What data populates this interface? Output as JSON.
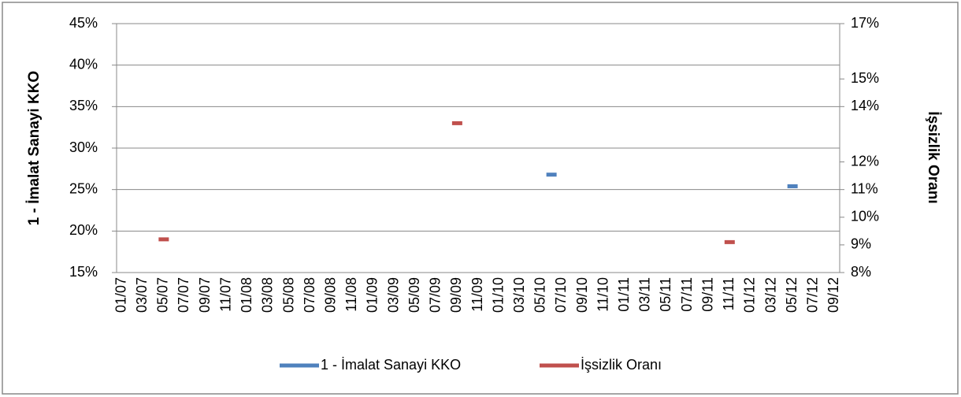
{
  "chart_data": {
    "type": "line",
    "y_label": "1 - İmalat Sanayi KKO",
    "y2_label": "İşsizlik Oranı",
    "categories": [
      "01/07",
      null,
      "03/07",
      null,
      "05/07",
      null,
      "07/07",
      null,
      "09/07",
      null,
      "11/07",
      null,
      "01/08",
      null,
      "03/08",
      null,
      "05/08",
      null,
      "07/08",
      null,
      "09/08",
      null,
      "11/08",
      null,
      "01/09",
      null,
      "03/09",
      null,
      "05/09",
      null,
      "07/09",
      null,
      "09/09",
      null,
      "11/09",
      null,
      "01/10",
      null,
      "03/10",
      null,
      "05/10",
      null,
      "07/10",
      null,
      "09/10",
      null,
      "11/10",
      null,
      "01/11",
      null,
      "03/11",
      null,
      "05/11",
      null,
      "07/11",
      null,
      "09/11",
      null,
      "11/11",
      null,
      "01/12",
      null,
      "03/12",
      null,
      "05/12",
      null,
      "07/12",
      null,
      "09/12"
    ],
    "series": [
      {
        "name": "1 - İmalat Sanayi KKO",
        "color": "#4f81bd",
        "values": [
          null,
          null,
          null,
          null,
          null,
          null,
          null,
          null,
          null,
          null,
          null,
          null,
          null,
          null,
          null,
          null,
          null,
          null,
          null,
          null,
          null,
          null,
          null,
          null,
          null,
          null,
          null,
          null,
          null,
          null,
          null,
          null,
          null,
          null,
          null,
          null,
          null,
          null,
          null,
          null,
          null,
          26.8,
          null,
          null,
          null,
          null,
          null,
          null,
          null,
          null,
          null,
          null,
          null,
          null,
          null,
          null,
          null,
          null,
          null,
          null,
          null,
          null,
          null,
          null,
          25.4,
          null,
          null,
          null,
          null
        ]
      },
      {
        "name": "İşsizlik Oranı",
        "color": "#c0504d",
        "axis": "y2",
        "values": [
          null,
          null,
          null,
          null,
          9.2,
          null,
          null,
          null,
          null,
          null,
          null,
          null,
          null,
          null,
          null,
          null,
          null,
          null,
          null,
          null,
          null,
          null,
          null,
          null,
          null,
          null,
          null,
          null,
          null,
          null,
          null,
          null,
          13.4,
          null,
          null,
          null,
          null,
          null,
          null,
          null,
          null,
          null,
          null,
          null,
          null,
          null,
          null,
          null,
          null,
          null,
          null,
          null,
          null,
          null,
          null,
          null,
          null,
          null,
          9.1,
          null,
          null,
          null,
          null,
          null,
          null,
          null,
          null,
          null,
          null
        ]
      }
    ],
    "ylim": [
      15,
      45
    ],
    "yticks": [
      {
        "value": 15,
        "label": "15%"
      },
      {
        "value": 20,
        "label": "20%"
      },
      {
        "value": 25,
        "label": "25%"
      },
      {
        "value": 30,
        "label": "30%"
      },
      {
        "value": 35,
        "label": "35%"
      },
      {
        "value": 40,
        "label": "40%"
      },
      {
        "value": 45,
        "label": "45%"
      }
    ],
    "y2lim": [
      8,
      17
    ],
    "y2ticks": [
      {
        "value": 8,
        "label": "8%"
      },
      {
        "value": 9,
        "label": "9%"
      },
      {
        "value": 10,
        "label": "10%"
      },
      {
        "value": 11,
        "label": "11%"
      },
      {
        "value": 12,
        "label": "12%"
      },
      {
        "value": 14,
        "label": "14%"
      },
      {
        "value": 15,
        "label": "15%"
      },
      {
        "value": 17,
        "label": "17%"
      }
    ],
    "grid": true
  }
}
